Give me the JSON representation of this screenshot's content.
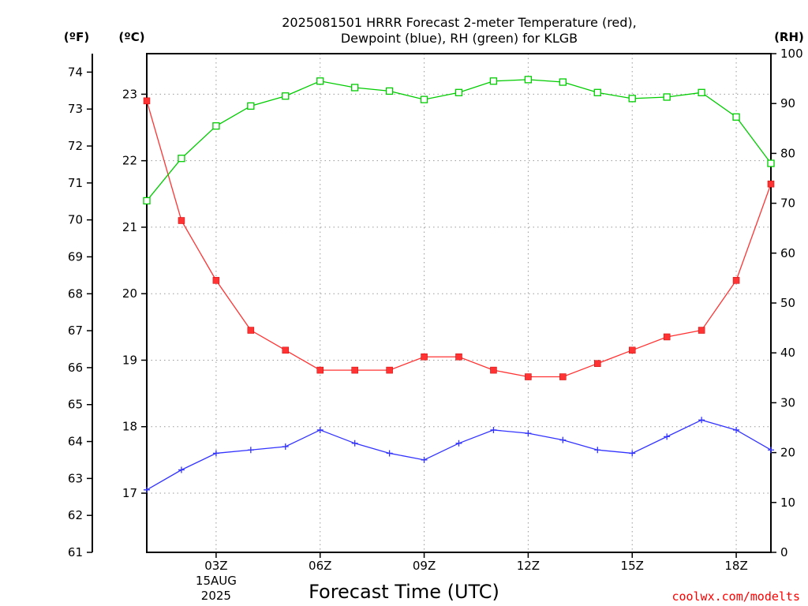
{
  "title_line1": "2025081501 HRRR Forecast 2-meter Temperature (red),",
  "title_line2": "Dewpoint (blue), RH (green) for KLGB",
  "credit": "coolwx.com/modelts",
  "chart_data": {
    "type": "line",
    "xlabel": "Forecast Time (UTC)",
    "x": [
      "01Z",
      "02Z",
      "03Z",
      "04Z",
      "05Z",
      "06Z",
      "07Z",
      "08Z",
      "09Z",
      "10Z",
      "11Z",
      "12Z",
      "13Z",
      "14Z",
      "15Z",
      "16Z",
      "17Z",
      "18Z",
      "19Z"
    ],
    "xlim": [
      1,
      19
    ],
    "x_ticks": [
      {
        "x": 3,
        "label": "03Z",
        "date": "15AUG",
        "year": "2025"
      },
      {
        "x": 6,
        "label": "06Z"
      },
      {
        "x": 9,
        "label": "09Z"
      },
      {
        "x": 12,
        "label": "12Z"
      },
      {
        "x": 15,
        "label": "15Z"
      },
      {
        "x": 18,
        "label": "18Z"
      }
    ],
    "axes": {
      "fahrenheit": {
        "label": "(ºF)",
        "ylim": [
          61,
          74.5
        ],
        "ticks": [
          61,
          62,
          63,
          64,
          65,
          66,
          67,
          68,
          69,
          70,
          71,
          72,
          73,
          74
        ]
      },
      "celsius": {
        "label": "(ºC)",
        "ylim": [
          16.11,
          23.61
        ],
        "ticks": [
          17,
          18,
          19,
          20,
          21,
          22,
          23
        ]
      },
      "rh": {
        "label": "(RH)",
        "ylim": [
          0,
          100
        ],
        "ticks": [
          0,
          10,
          20,
          30,
          40,
          50,
          60,
          70,
          80,
          90,
          100
        ]
      }
    },
    "grid": true,
    "series": [
      {
        "name": "Temperature",
        "axis": "celsius",
        "color": "#ff3333",
        "marker": "filled-square",
        "values": [
          22.9,
          21.1,
          20.2,
          19.45,
          19.15,
          18.85,
          18.85,
          18.85,
          19.05,
          19.05,
          18.85,
          18.75,
          18.75,
          18.95,
          19.15,
          19.35,
          19.45,
          20.2,
          21.65
        ]
      },
      {
        "name": "Dewpoint",
        "axis": "celsius",
        "color": "#3333ff",
        "marker": "plus",
        "values": [
          17.05,
          17.35,
          17.6,
          17.65,
          17.7,
          17.95,
          17.75,
          17.6,
          17.5,
          17.75,
          17.95,
          17.9,
          17.8,
          17.65,
          17.6,
          17.85,
          18.1,
          17.95,
          17.65
        ]
      },
      {
        "name": "RH",
        "axis": "rh",
        "color": "#00cc00",
        "marker": "open-square",
        "values": [
          70.5,
          79,
          85.5,
          89.5,
          91.5,
          94.5,
          93.2,
          92.5,
          90.8,
          92.2,
          94.5,
          94.8,
          94.3,
          92.2,
          91,
          91.3,
          92.2,
          87.3,
          78
        ]
      }
    ]
  }
}
